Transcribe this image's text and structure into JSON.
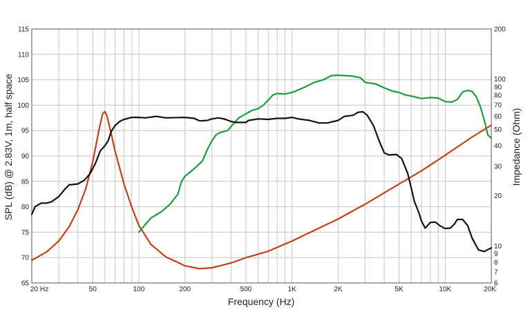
{
  "chart_data": {
    "type": "line",
    "xlabel": "Frequency (Hz)",
    "ylabel": "SPL (dB) @ 2.83V, 1m, half space",
    "y2label": "Impedance (Ohm)",
    "xscale": "log",
    "xlim": [
      20,
      20000
    ],
    "ylim": [
      65,
      115
    ],
    "y2lim": [
      6,
      200
    ],
    "y2scale": "log",
    "grid": true,
    "x_tick_labels": [
      {
        "value": 20,
        "label": "20  Hz"
      },
      {
        "value": 50,
        "label": "50"
      },
      {
        "value": 100,
        "label": "100"
      },
      {
        "value": 200,
        "label": "200"
      },
      {
        "value": 500,
        "label": "500"
      },
      {
        "value": 1000,
        "label": "1K"
      },
      {
        "value": 2000,
        "label": "2K"
      },
      {
        "value": 5000,
        "label": "5K"
      },
      {
        "value": 10000,
        "label": "10K"
      },
      {
        "value": 20000,
        "label": "20K"
      }
    ],
    "y_tick_labels": [
      "65",
      "70",
      "75",
      "80",
      "85",
      "90",
      "95",
      "100",
      "105",
      "110",
      "115"
    ],
    "y2_tick_labels": [
      {
        "value": 6,
        "label": "6"
      },
      {
        "value": 7,
        "label": "7"
      },
      {
        "value": 8,
        "label": "8"
      },
      {
        "value": 9,
        "label": "9"
      },
      {
        "value": 10,
        "label": "10"
      },
      {
        "value": 20,
        "label": "20"
      },
      {
        "value": 30,
        "label": "30"
      },
      {
        "value": 40,
        "label": "40"
      },
      {
        "value": 50,
        "label": "50"
      },
      {
        "value": 60,
        "label": "60"
      },
      {
        "value": 70,
        "label": "70"
      },
      {
        "value": 80,
        "label": "80"
      },
      {
        "value": 90,
        "label": "90"
      },
      {
        "value": 100,
        "label": "100"
      },
      {
        "value": 200,
        "label": "200"
      }
    ],
    "series": [
      {
        "axis": "left",
        "color": "#111111",
        "points": [
          [
            20,
            78.5
          ],
          [
            21,
            80
          ],
          [
            23,
            80.7
          ],
          [
            25,
            80.7
          ],
          [
            27,
            81
          ],
          [
            30,
            82
          ],
          [
            33,
            83.5
          ],
          [
            35,
            84.3
          ],
          [
            40,
            84.5
          ],
          [
            44,
            85.2
          ],
          [
            48,
            86.5
          ],
          [
            52,
            88.5
          ],
          [
            56,
            91
          ],
          [
            60,
            92
          ],
          [
            63,
            93
          ],
          [
            66,
            94.8
          ],
          [
            70,
            96
          ],
          [
            75,
            96.8
          ],
          [
            80,
            97.2
          ],
          [
            90,
            97.6
          ],
          [
            100,
            97.6
          ],
          [
            110,
            97.5
          ],
          [
            130,
            97.8
          ],
          [
            150,
            97.5
          ],
          [
            200,
            97.6
          ],
          [
            230,
            97.4
          ],
          [
            250,
            96.9
          ],
          [
            280,
            97.0
          ],
          [
            300,
            97.3
          ],
          [
            330,
            97.5
          ],
          [
            360,
            97.3
          ],
          [
            400,
            96.8
          ],
          [
            430,
            96.6
          ],
          [
            500,
            96.6
          ],
          [
            520,
            97.0
          ],
          [
            600,
            97.3
          ],
          [
            700,
            97.2
          ],
          [
            800,
            97.4
          ],
          [
            900,
            97.4
          ],
          [
            1000,
            97.6
          ],
          [
            1100,
            97.3
          ],
          [
            1300,
            97.0
          ],
          [
            1500,
            96.5
          ],
          [
            1700,
            96.5
          ],
          [
            2000,
            97
          ],
          [
            2200,
            97.8
          ],
          [
            2500,
            98
          ],
          [
            2700,
            98.6
          ],
          [
            2900,
            98.7
          ],
          [
            3100,
            98
          ],
          [
            3400,
            96
          ],
          [
            3700,
            93
          ],
          [
            4000,
            90.6
          ],
          [
            4300,
            90.2
          ],
          [
            4800,
            90.3
          ],
          [
            5200,
            89.5
          ],
          [
            5700,
            86.5
          ],
          [
            6300,
            81
          ],
          [
            6700,
            79
          ],
          [
            7000,
            77.2
          ],
          [
            7400,
            75.8
          ],
          [
            8000,
            76.9
          ],
          [
            8600,
            77
          ],
          [
            9200,
            76.3
          ],
          [
            10000,
            75.7
          ],
          [
            10800,
            75.8
          ],
          [
            11500,
            76.6
          ],
          [
            12000,
            77.5
          ],
          [
            13000,
            77.5
          ],
          [
            14000,
            76.3
          ],
          [
            15000,
            73.8
          ],
          [
            16500,
            71.5
          ],
          [
            18000,
            71.2
          ],
          [
            20000,
            71.9
          ]
        ]
      },
      {
        "axis": "left",
        "color": "#1d9b3a",
        "points": [
          [
            100,
            75
          ],
          [
            110,
            76.5
          ],
          [
            120,
            77.8
          ],
          [
            140,
            79
          ],
          [
            160,
            80.5
          ],
          [
            180,
            82.5
          ],
          [
            190,
            85
          ],
          [
            200,
            86
          ],
          [
            220,
            87
          ],
          [
            240,
            88
          ],
          [
            260,
            89
          ],
          [
            280,
            91.3
          ],
          [
            300,
            93
          ],
          [
            320,
            94.2
          ],
          [
            340,
            94.6
          ],
          [
            380,
            95
          ],
          [
            400,
            95.8
          ],
          [
            450,
            97.5
          ],
          [
            500,
            98.3
          ],
          [
            550,
            99
          ],
          [
            600,
            99.3
          ],
          [
            650,
            100
          ],
          [
            700,
            101
          ],
          [
            750,
            102
          ],
          [
            800,
            102.3
          ],
          [
            900,
            102.2
          ],
          [
            1000,
            102.5
          ],
          [
            1100,
            103
          ],
          [
            1200,
            103.5
          ],
          [
            1400,
            104.5
          ],
          [
            1600,
            105
          ],
          [
            1800,
            105.8
          ],
          [
            2000,
            105.9
          ],
          [
            2500,
            105.7
          ],
          [
            2800,
            105.4
          ],
          [
            3000,
            104.5
          ],
          [
            3500,
            104.2
          ],
          [
            4000,
            103.4
          ],
          [
            4500,
            102.8
          ],
          [
            5000,
            102.5
          ],
          [
            5500,
            102
          ],
          [
            6000,
            101.8
          ],
          [
            7000,
            101.3
          ],
          [
            8000,
            101.5
          ],
          [
            9000,
            101.4
          ],
          [
            10000,
            100.7
          ],
          [
            11000,
            100.6
          ],
          [
            12000,
            101.1
          ],
          [
            13000,
            102.6
          ],
          [
            14000,
            102.9
          ],
          [
            15000,
            102.7
          ],
          [
            16000,
            101.6
          ],
          [
            17000,
            99.6
          ],
          [
            18000,
            97
          ],
          [
            19000,
            94.1
          ],
          [
            20000,
            93.5
          ]
        ]
      },
      {
        "axis": "right",
        "color": "#c0401b",
        "points": [
          [
            20,
            8.2
          ],
          [
            25,
            9.2
          ],
          [
            30,
            10.7
          ],
          [
            35,
            13
          ],
          [
            40,
            16.5
          ],
          [
            45,
            22
          ],
          [
            50,
            32
          ],
          [
            55,
            50
          ],
          [
            58,
            62
          ],
          [
            60,
            64
          ],
          [
            62,
            60
          ],
          [
            65,
            50
          ],
          [
            70,
            37
          ],
          [
            80,
            23.5
          ],
          [
            90,
            17
          ],
          [
            100,
            13.3
          ],
          [
            120,
            10.2
          ],
          [
            150,
            8.6
          ],
          [
            200,
            7.6
          ],
          [
            250,
            7.3
          ],
          [
            300,
            7.4
          ],
          [
            400,
            7.9
          ],
          [
            500,
            8.5
          ],
          [
            700,
            9.3
          ],
          [
            1000,
            10.7
          ],
          [
            2000,
            14.5
          ],
          [
            3000,
            17.8
          ],
          [
            5000,
            23.5
          ],
          [
            7000,
            28.2
          ],
          [
            10000,
            35
          ],
          [
            15000,
            45
          ],
          [
            20000,
            53
          ]
        ]
      }
    ]
  }
}
